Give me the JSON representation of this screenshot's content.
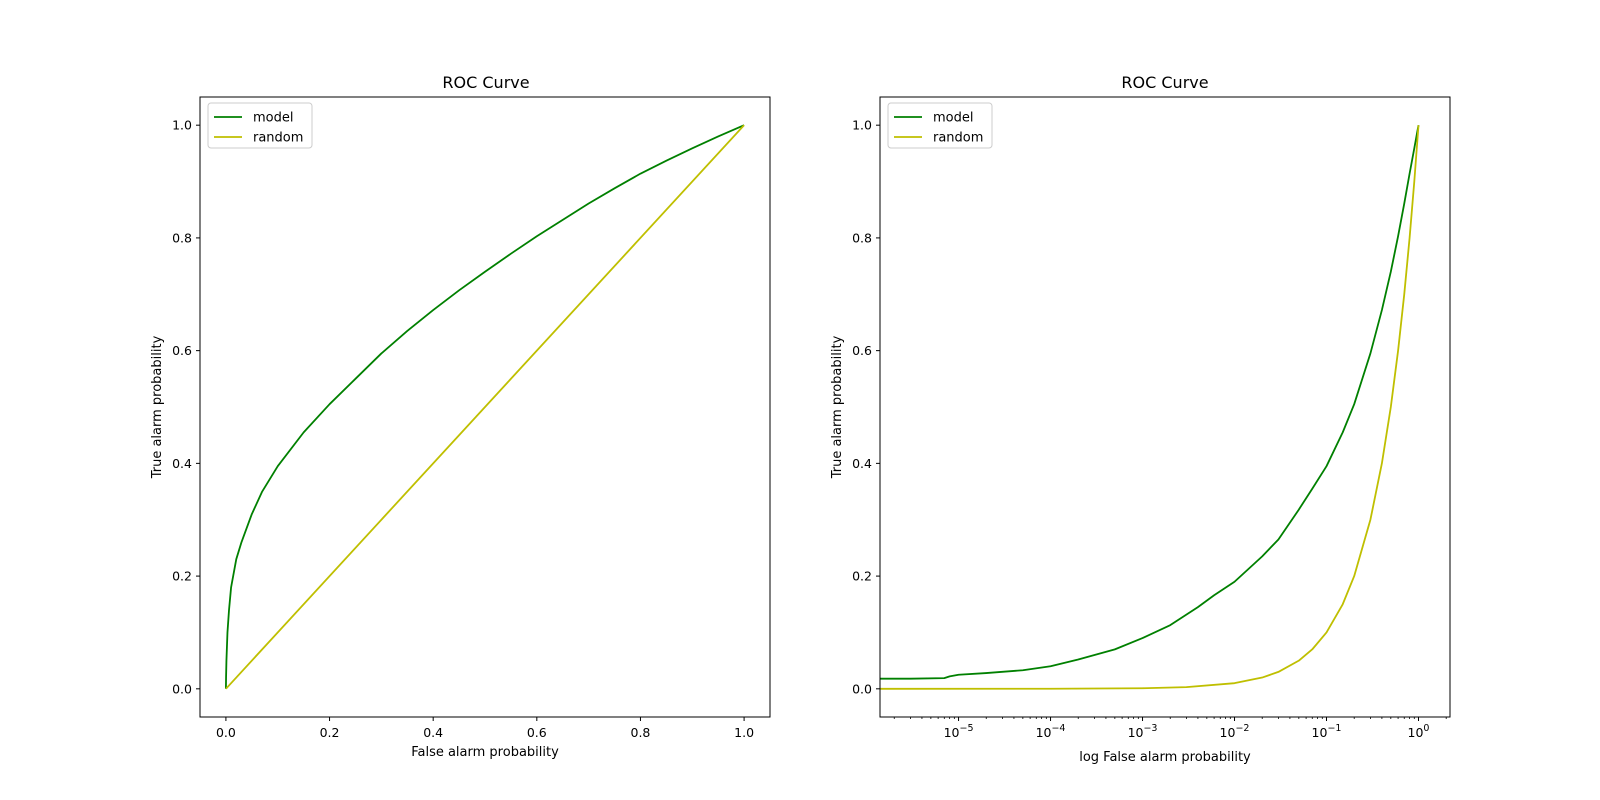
{
  "figure": {
    "colors": {
      "model": "#008000",
      "random": "#bfbf00",
      "axes": "#000000",
      "background": "#ffffff"
    }
  },
  "chart_data": [
    {
      "type": "line",
      "title": "ROC Curve",
      "xlabel": "False alarm probability",
      "ylabel": "True alarm probability",
      "xscale": "linear",
      "xlim": [
        -0.05,
        1.05
      ],
      "ylim": [
        -0.05,
        1.05
      ],
      "xticks": [
        0.0,
        0.2,
        0.4,
        0.6,
        0.8,
        1.0
      ],
      "xtick_labels": [
        "0.0",
        "0.2",
        "0.4",
        "0.6",
        "0.8",
        "1.0"
      ],
      "yticks": [
        0.0,
        0.2,
        0.4,
        0.6,
        0.8,
        1.0
      ],
      "ytick_labels": [
        "0.0",
        "0.2",
        "0.4",
        "0.6",
        "0.8",
        "1.0"
      ],
      "grid": false,
      "legend_position": "upper-left",
      "series": [
        {
          "name": "model",
          "color": "#008000",
          "x": [
            0,
            0.0003,
            0.001,
            0.003,
            0.006,
            0.01,
            0.02,
            0.03,
            0.05,
            0.07,
            0.1,
            0.15,
            0.2,
            0.25,
            0.3,
            0.35,
            0.4,
            0.45,
            0.5,
            0.55,
            0.6,
            0.65,
            0.7,
            0.75,
            0.8,
            0.85,
            0.9,
            0.95,
            1.0
          ],
          "y": [
            0,
            0.02,
            0.05,
            0.1,
            0.14,
            0.18,
            0.23,
            0.26,
            0.31,
            0.35,
            0.395,
            0.455,
            0.505,
            0.55,
            0.595,
            0.635,
            0.672,
            0.707,
            0.74,
            0.772,
            0.803,
            0.832,
            0.861,
            0.888,
            0.914,
            0.937,
            0.959,
            0.98,
            1.0
          ]
        },
        {
          "name": "random",
          "color": "#bfbf00",
          "x": [
            0,
            1
          ],
          "y": [
            0,
            1
          ]
        }
      ]
    },
    {
      "type": "line",
      "title": "ROC Curve",
      "xlabel": "log False alarm probability",
      "ylabel": "True alarm probability",
      "xscale": "log",
      "xlim": [
        1.4e-06,
        2.2
      ],
      "ylim": [
        -0.05,
        1.05
      ],
      "xticks": [
        1e-05,
        0.0001,
        0.001,
        0.01,
        0.1,
        1
      ],
      "xtick_bases": [
        "10",
        "10",
        "10",
        "10",
        "10",
        "10"
      ],
      "xtick_exponents": [
        "−5",
        "−4",
        "−3",
        "−2",
        "−1",
        "0"
      ],
      "yticks": [
        0.0,
        0.2,
        0.4,
        0.6,
        0.8,
        1.0
      ],
      "ytick_labels": [
        "0.0",
        "0.2",
        "0.4",
        "0.6",
        "0.8",
        "1.0"
      ],
      "grid": false,
      "legend_position": "upper-left",
      "series": [
        {
          "name": "model",
          "color": "#008000",
          "x": [
            1.4e-06,
            3e-06,
            7e-06,
            8e-06,
            1e-05,
            2e-05,
            5e-05,
            0.0001,
            0.0002,
            0.0005,
            0.001,
            0.002,
            0.004,
            0.006,
            0.01,
            0.02,
            0.03,
            0.05,
            0.07,
            0.1,
            0.15,
            0.2,
            0.3,
            0.4,
            0.5,
            0.6,
            0.7,
            0.8,
            0.9,
            1.0
          ],
          "y": [
            0.018,
            0.018,
            0.019,
            0.022,
            0.025,
            0.028,
            0.033,
            0.04,
            0.052,
            0.07,
            0.09,
            0.113,
            0.145,
            0.166,
            0.19,
            0.235,
            0.265,
            0.318,
            0.355,
            0.395,
            0.455,
            0.505,
            0.595,
            0.672,
            0.74,
            0.803,
            0.861,
            0.914,
            0.959,
            1.0
          ]
        },
        {
          "name": "random",
          "color": "#bfbf00",
          "x": [
            1.4e-06,
            0.0001,
            0.001,
            0.003,
            0.01,
            0.02,
            0.03,
            0.05,
            0.07,
            0.1,
            0.15,
            0.2,
            0.3,
            0.4,
            0.5,
            0.6,
            0.7,
            0.8,
            0.9,
            1.0
          ],
          "y": [
            0,
            0.0001,
            0.001,
            0.003,
            0.01,
            0.02,
            0.03,
            0.05,
            0.07,
            0.1,
            0.15,
            0.2,
            0.3,
            0.4,
            0.5,
            0.6,
            0.7,
            0.8,
            0.9,
            1.0
          ]
        }
      ]
    }
  ]
}
